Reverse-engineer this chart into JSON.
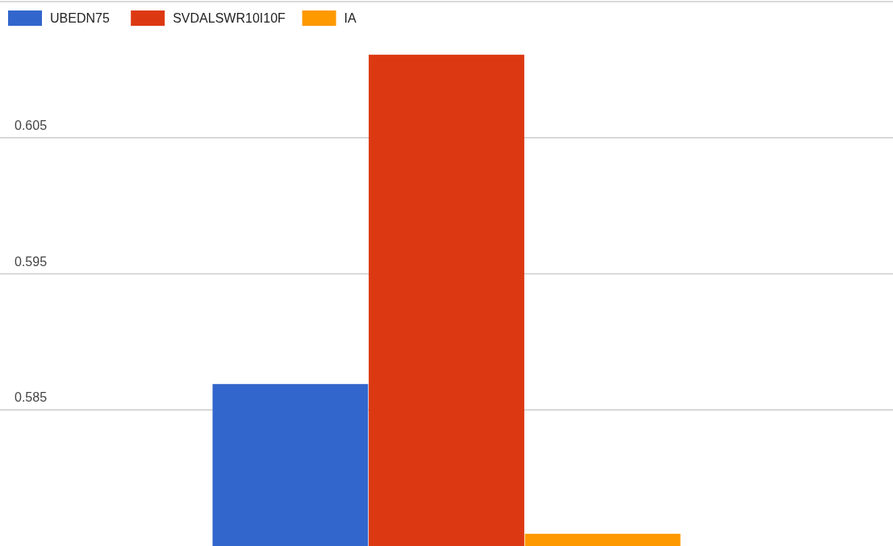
{
  "chart_data": {
    "type": "bar",
    "categories": [
      null
    ],
    "series": [
      {
        "name": "UBEDN75",
        "color": "#3366cc",
        "values": [
          0.5869
        ]
      },
      {
        "name": "SVDALSWR10I10F",
        "color": "#dc3912",
        "values": [
          0.6111
        ]
      },
      {
        "name": "IA",
        "color": "#ff9900",
        "values": [
          0.5759
        ]
      }
    ],
    "ylim": [
      0.575,
      0.615
    ],
    "yticks": [
      0.585,
      0.595,
      0.605,
      {
        "value": 0.615,
        "label": null
      }
    ],
    "grid": "y",
    "legend": "top left",
    "tick_labels": "y"
  }
}
